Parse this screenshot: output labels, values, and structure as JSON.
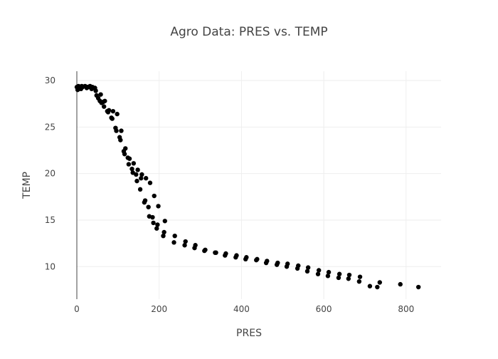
{
  "chart_data": {
    "type": "scatter",
    "title": "Agro Data: PRES vs. TEMP",
    "xlabel": "PRES",
    "ylabel": "TEMP",
    "xlim": [
      0,
      885
    ],
    "ylim": [
      6.5,
      31
    ],
    "xticks": [
      0,
      200,
      400,
      600,
      800
    ],
    "yticks": [
      10,
      15,
      20,
      25,
      30
    ],
    "grid": true,
    "marker_color": "#000000",
    "series": [
      {
        "x": [
          0,
          2,
          4,
          6,
          8,
          10,
          12,
          14,
          20,
          24,
          26,
          28,
          32,
          36,
          38,
          44,
          46,
          48,
          52,
          56,
          58,
          60,
          64,
          66,
          68,
          74,
          76,
          78,
          84,
          86,
          88,
          94,
          96,
          98,
          104,
          106,
          108,
          114,
          116,
          118,
          124,
          126,
          128,
          134,
          136,
          138,
          144,
          146,
          148,
          154,
          156,
          158,
          164,
          166,
          168,
          174,
          176,
          178,
          184,
          186,
          188,
          194,
          196,
          198,
          210,
          212,
          214,
          236,
          238,
          262,
          264,
          286,
          288,
          310,
          312,
          336,
          338,
          360,
          362,
          386,
          388,
          410,
          412,
          436,
          438,
          460,
          462,
          486,
          488,
          510,
          512,
          536,
          538,
          560,
          562,
          586,
          588,
          610,
          612,
          636,
          638,
          660,
          662,
          686,
          688,
          712,
          730,
          736,
          786,
          830
        ],
        "y": [
          29.3,
          29.0,
          29.4,
          29.2,
          29.3,
          29.1,
          29.4,
          29.3,
          29.4,
          29.2,
          29.3,
          29.3,
          29.4,
          29.1,
          29.3,
          29.2,
          28.9,
          28.4,
          28.1,
          27.8,
          28.5,
          27.6,
          27.7,
          27.2,
          27.8,
          26.7,
          26.6,
          26.8,
          26.0,
          25.9,
          26.7,
          24.9,
          24.6,
          26.4,
          23.9,
          23.6,
          24.6,
          22.4,
          22.1,
          22.7,
          21.7,
          21.0,
          21.6,
          20.5,
          20.1,
          21.1,
          19.9,
          19.2,
          20.4,
          18.3,
          19.5,
          19.9,
          16.9,
          17.1,
          19.5,
          16.4,
          15.4,
          19.0,
          15.3,
          14.7,
          17.6,
          14.1,
          14.5,
          16.5,
          13.3,
          13.7,
          14.9,
          12.6,
          13.3,
          12.3,
          12.7,
          12.0,
          12.3,
          11.7,
          11.8,
          11.5,
          11.5,
          11.2,
          11.4,
          11.0,
          11.2,
          10.8,
          11.0,
          10.7,
          10.8,
          10.4,
          10.6,
          10.2,
          10.4,
          10.0,
          10.3,
          9.8,
          10.1,
          9.5,
          9.9,
          9.2,
          9.6,
          9.0,
          9.4,
          8.8,
          9.2,
          8.7,
          9.1,
          8.4,
          8.9,
          7.9,
          7.8,
          8.3,
          8.1,
          7.8
        ]
      }
    ]
  }
}
